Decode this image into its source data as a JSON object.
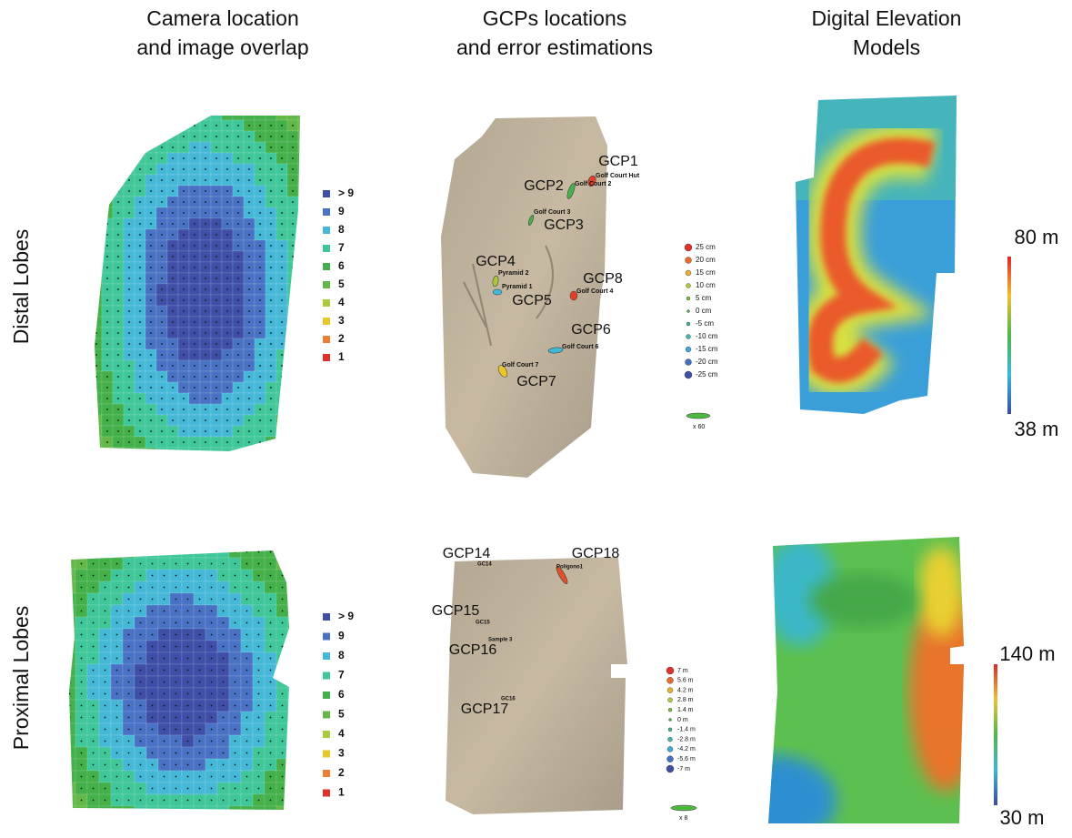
{
  "columns": [
    [
      "Camera location",
      "and image overlap"
    ],
    [
      "GCPs locations",
      "and error estimations"
    ],
    [
      "Digital Elevation",
      "Models"
    ]
  ],
  "rows": [
    "Distal Lobes",
    "Proximal Lobes"
  ],
  "overlap_legend": [
    "> 9",
    "9",
    "8",
    "7",
    "6",
    "5",
    "4",
    "3",
    "2",
    "1"
  ],
  "distal": {
    "gcp_labels": [
      "GCP1",
      "GCP2",
      "GCP3",
      "GCP4",
      "GCP8",
      "GCP5",
      "GCP6",
      "GCP7"
    ],
    "point_names": [
      "Golf Court Hut",
      "Golf Court 2",
      "Golf Court 3",
      "Pyramid 2",
      "Pyramid 1",
      "Golf Court 4",
      "Golf Court 6",
      "Golf Court 7"
    ],
    "error_legend": [
      "25 cm",
      "20 cm",
      "15 cm",
      "10 cm",
      "5 cm",
      "0 cm",
      "-5 cm",
      "-10 cm",
      "-15 cm",
      "-20 cm",
      "-25 cm"
    ],
    "scale": "x 60",
    "dem_scale": [
      "80 m",
      "38 m"
    ]
  },
  "proximal": {
    "gcp_labels": [
      "GCP14",
      "GCP18",
      "GCP15",
      "GCP16",
      "GCP17"
    ],
    "point_names": [
      "GC14",
      "Poligono1",
      "GC15",
      "Sample 3",
      "GC16"
    ],
    "error_legend": [
      "7 m",
      "5.6 m",
      "4.2 m",
      "2.8 m",
      "1.4 m",
      "0 m",
      "-1.4 m",
      "-2.8 m",
      "-4.2 m",
      "-5.6 m",
      "-7 m"
    ],
    "scale": "x 8",
    "dem_scale": [
      "140 m",
      "30 m"
    ]
  }
}
